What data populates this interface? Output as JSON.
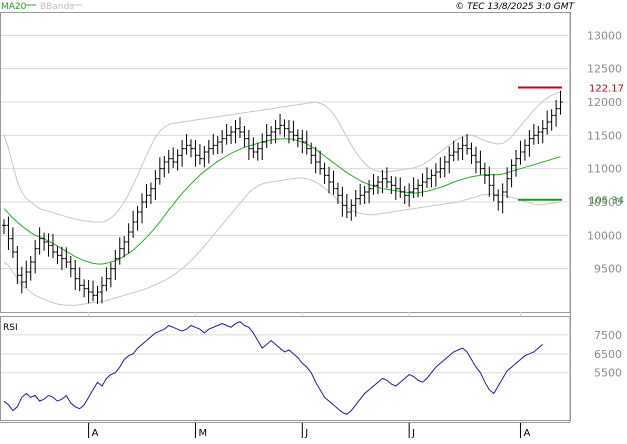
{
  "header": {
    "legend_ma": "MA20",
    "legend_bbands": "BBands",
    "copyright": "© TEC 13/8/2025 3:0 GMT"
  },
  "colors": {
    "candles": "#000000",
    "ma": "#22b022",
    "bbands": "#c8c8c8",
    "rsi": "#1a1ab8",
    "resistance": "#c8001a",
    "support": "#1a9a1a",
    "grid": "#dcdcdc",
    "frame": "#9a9a9a"
  },
  "chart_data": [
    {
      "type": "line",
      "subtype": "candlestick-with-ma-bbands",
      "title": "",
      "y_ticks": [
        9500,
        10000,
        10500,
        11000,
        11500,
        12000,
        12500,
        13000
      ],
      "y_tick_labels": [
        "9500",
        "10000",
        "10500",
        "11000",
        "11500",
        "12000",
        "12500",
        "13000"
      ],
      "ylim": [
        8850,
        13350
      ],
      "x_ticks": [
        "A",
        "M",
        "J",
        "J",
        "A"
      ],
      "x_tick_bar_index": [
        19,
        43,
        67,
        91,
        116
      ],
      "bars_count": 126,
      "grid": true,
      "series": [
        {
          "name": "Close",
          "values": [
            10150,
            9950,
            9750,
            9400,
            9300,
            9450,
            9600,
            9800,
            9950,
            9900,
            9850,
            9750,
            9700,
            9650,
            9600,
            9500,
            9350,
            9250,
            9200,
            9150,
            9100,
            9150,
            9250,
            9350,
            9500,
            9650,
            9800,
            9900,
            10050,
            10200,
            10350,
            10500,
            10600,
            10700,
            10850,
            11000,
            11100,
            11150,
            11100,
            11200,
            11300,
            11350,
            11300,
            11200,
            11150,
            11250,
            11300,
            11350,
            11400,
            11450,
            11500,
            11550,
            11600,
            11550,
            11450,
            11300,
            11250,
            11300,
            11400,
            11500,
            11550,
            11600,
            11650,
            11600,
            11550,
            11500,
            11450,
            11400,
            11300,
            11200,
            11100,
            11000,
            10900,
            10800,
            10700,
            10600,
            10450,
            10350,
            10450,
            10550,
            10600,
            10650,
            10700,
            10750,
            10800,
            10850,
            10800,
            10750,
            10700,
            10650,
            10600,
            10650,
            10700,
            10750,
            10800,
            10850,
            10900,
            10950,
            11000,
            11100,
            11200,
            11250,
            11300,
            11350,
            11300,
            11200,
            11100,
            11000,
            10900,
            10750,
            10600,
            10500,
            10650,
            10850,
            11050,
            11150,
            11250,
            11350,
            11450,
            11500,
            11550,
            11600,
            11700,
            11800,
            11900,
            12000
          ]
        },
        {
          "name": "MA20",
          "values": [
            10400,
            10330,
            10260,
            10200,
            10140,
            10090,
            10040,
            10000,
            9980,
            9950,
            9910,
            9880,
            9840,
            9800,
            9760,
            9720,
            9680,
            9650,
            9620,
            9600,
            9580,
            9570,
            9570,
            9580,
            9600,
            9620,
            9650,
            9690,
            9730,
            9780,
            9840,
            9900,
            9970,
            10040,
            10120,
            10200,
            10290,
            10380,
            10460,
            10550,
            10630,
            10700,
            10770,
            10840,
            10900,
            10960,
            11010,
            11060,
            11110,
            11150,
            11190,
            11230,
            11260,
            11290,
            11320,
            11340,
            11360,
            11380,
            11400,
            11420,
            11430,
            11440,
            11445,
            11450,
            11445,
            11440,
            11420,
            11400,
            11370,
            11330,
            11290,
            11240,
            11190,
            11140,
            11090,
            11040,
            10990,
            10940,
            10900,
            10860,
            10820,
            10790,
            10760,
            10740,
            10720,
            10700,
            10690,
            10680,
            10670,
            10660,
            10650,
            10640,
            10630,
            10640,
            10650,
            10660,
            10680,
            10700,
            10720,
            10740,
            10770,
            10800,
            10820,
            10840,
            10860,
            10880,
            10890,
            10900,
            10910,
            10910,
            10910,
            10910,
            10920,
            10940,
            10960,
            10980,
            11000,
            11020,
            11040,
            11060,
            11080,
            11100,
            11120,
            11140,
            11160,
            11180
          ]
        },
        {
          "name": "BBands Upper",
          "values": [
            11500,
            11300,
            11050,
            10800,
            10650,
            10550,
            10500,
            10450,
            10400,
            10380,
            10360,
            10340,
            10320,
            10300,
            10280,
            10260,
            10240,
            10230,
            10220,
            10210,
            10200,
            10200,
            10200,
            10220,
            10260,
            10320,
            10400,
            10500,
            10620,
            10760,
            10900,
            11050,
            11200,
            11340,
            11470,
            11560,
            11620,
            11660,
            11680,
            11690,
            11700,
            11710,
            11720,
            11730,
            11740,
            11750,
            11760,
            11770,
            11780,
            11790,
            11800,
            11810,
            11820,
            11830,
            11840,
            11850,
            11860,
            11870,
            11880,
            11890,
            11900,
            11910,
            11920,
            11930,
            11940,
            11950,
            11960,
            11970,
            11980,
            11990,
            12000,
            11980,
            11950,
            11900,
            11820,
            11720,
            11600,
            11480,
            11360,
            11250,
            11160,
            11080,
            11020,
            10980,
            10960,
            10950,
            10950,
            10960,
            10970,
            10980,
            10990,
            11000,
            11010,
            11030,
            11060,
            11100,
            11150,
            11200,
            11250,
            11300,
            11350,
            11400,
            11450,
            11480,
            11500,
            11500,
            11480,
            11450,
            11420,
            11400,
            11380,
            11370,
            11380,
            11420,
            11480,
            11560,
            11640,
            11720,
            11800,
            11880,
            11950,
            12010,
            12060,
            12100,
            12130,
            12150
          ]
        },
        {
          "name": "BBands Lower",
          "values": [
            9600,
            9550,
            9450,
            9350,
            9250,
            9200,
            9150,
            9100,
            9070,
            9040,
            9010,
            8990,
            8970,
            8960,
            8950,
            8950,
            8950,
            8960,
            8970,
            8980,
            8990,
            9000,
            9010,
            9020,
            9040,
            9060,
            9080,
            9100,
            9120,
            9140,
            9160,
            9180,
            9200,
            9230,
            9260,
            9290,
            9320,
            9360,
            9400,
            9450,
            9500,
            9560,
            9620,
            9690,
            9760,
            9840,
            9920,
            10000,
            10080,
            10160,
            10240,
            10320,
            10400,
            10480,
            10560,
            10640,
            10700,
            10740,
            10770,
            10790,
            10800,
            10810,
            10820,
            10830,
            10840,
            10850,
            10860,
            10860,
            10850,
            10830,
            10800,
            10760,
            10710,
            10650,
            10590,
            10530,
            10470,
            10420,
            10380,
            10350,
            10330,
            10320,
            10310,
            10310,
            10320,
            10330,
            10340,
            10350,
            10360,
            10370,
            10380,
            10390,
            10400,
            10410,
            10420,
            10430,
            10440,
            10450,
            10460,
            10470,
            10480,
            10490,
            10500,
            10520,
            10540,
            10560,
            10580,
            10600,
            10610,
            10620,
            10620,
            10610,
            10600,
            10590,
            10570,
            10550,
            10530,
            10510,
            10490,
            10470,
            10460,
            10460,
            10470,
            10480,
            10490,
            10500
          ]
        }
      ],
      "levels": [
        {
          "label": "122.17",
          "value": 12217,
          "color": "#c8001a"
        },
        {
          "label": "105.34",
          "value": 10534,
          "color": "#1a9a1a"
        }
      ]
    },
    {
      "type": "line",
      "title": "RSI",
      "y_ticks": [
        55,
        65,
        75
      ],
      "y_tick_labels": [
        "5500",
        "6500",
        "7500"
      ],
      "ylim": [
        30,
        85
      ],
      "x_ticks": [
        "A",
        "M",
        "J",
        "J",
        "A"
      ],
      "x_tick_bar_index": [
        19,
        43,
        67,
        91,
        116
      ],
      "grid": true,
      "series": [
        {
          "name": "RSI",
          "values": [
            40,
            38,
            35,
            37,
            42,
            44,
            42,
            43,
            40,
            41,
            43,
            42,
            40,
            41,
            43,
            39,
            37,
            36,
            38,
            42,
            46,
            50,
            48,
            52,
            54,
            55,
            58,
            62,
            64,
            65,
            68,
            70,
            72,
            74,
            76,
            77,
            78,
            80,
            79,
            78,
            77,
            78,
            80,
            79,
            78,
            76,
            78,
            79,
            80,
            81,
            80,
            79,
            81,
            82,
            80,
            79,
            76,
            72,
            68,
            70,
            72,
            70,
            68,
            66,
            67,
            65,
            63,
            60,
            58,
            55,
            50,
            46,
            42,
            40,
            38,
            36,
            34,
            33,
            35,
            38,
            41,
            44,
            46,
            48,
            50,
            52,
            51,
            49,
            48,
            50,
            52,
            54,
            53,
            51,
            50,
            52,
            55,
            58,
            60,
            62,
            64,
            66,
            67,
            68,
            66,
            62,
            58,
            55,
            50,
            46,
            44,
            48,
            52,
            56,
            58,
            60,
            62,
            64,
            65,
            66,
            68,
            70
          ]
        }
      ]
    }
  ]
}
